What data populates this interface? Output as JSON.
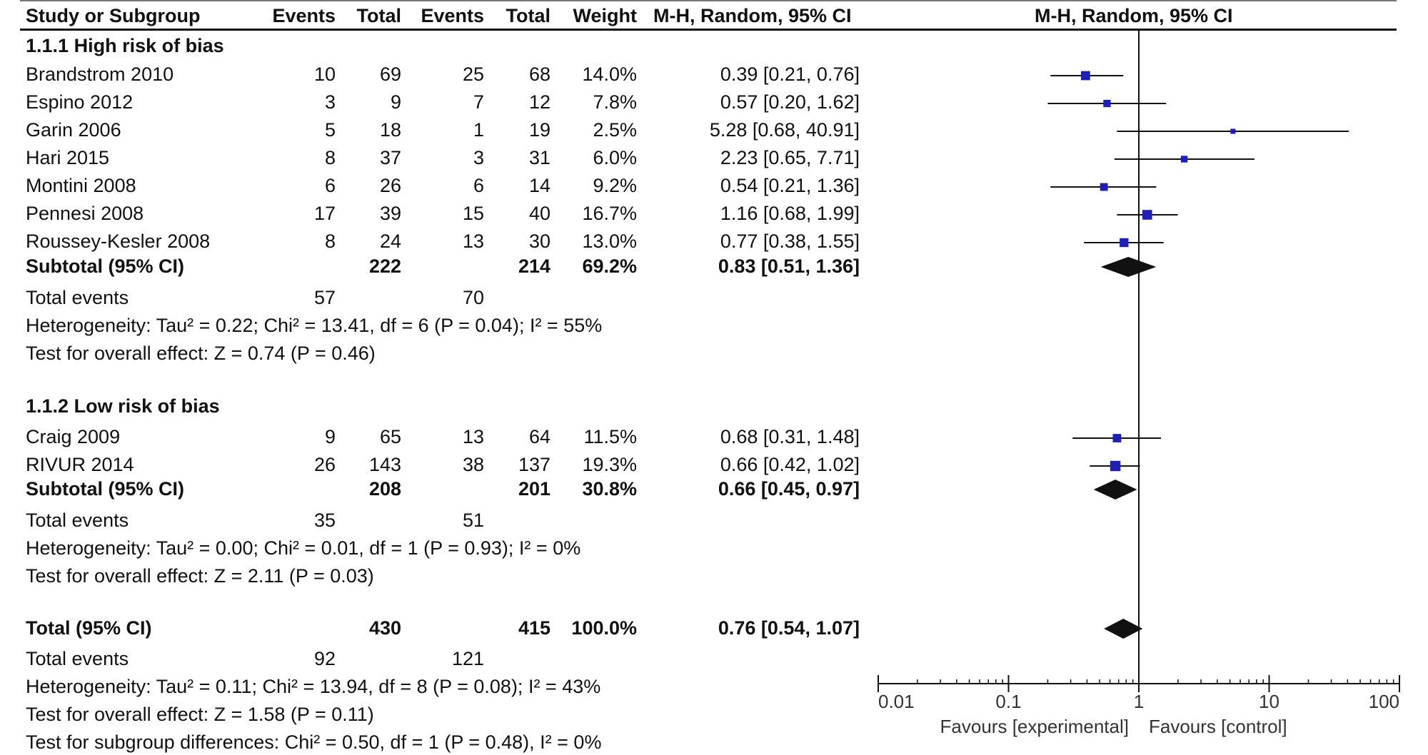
{
  "header": {
    "study": "Study or Subgroup",
    "events1": "Events",
    "total1": "Total",
    "events2": "Events",
    "total2": "Total",
    "weight": "Weight",
    "ci": "M-H, Random, 95% CI",
    "plot_ci": "M-H, Random, 95% CI"
  },
  "groups": [
    {
      "code": "1.1.1",
      "title": "High risk of bias",
      "studies": [
        {
          "name": "Brandstrom 2010",
          "e1": "10",
          "t1": "69",
          "e2": "25",
          "t2": "68",
          "weight": "14.0%",
          "ci": "0.39 [0.21, 0.76]"
        },
        {
          "name": "Espino 2012",
          "e1": "3",
          "t1": "9",
          "e2": "7",
          "t2": "12",
          "weight": "7.8%",
          "ci": "0.57 [0.20, 1.62]"
        },
        {
          "name": "Garin 2006",
          "e1": "5",
          "t1": "18",
          "e2": "1",
          "t2": "19",
          "weight": "2.5%",
          "ci": "5.28 [0.68, 40.91]"
        },
        {
          "name": "Hari 2015",
          "e1": "8",
          "t1": "37",
          "e2": "3",
          "t2": "31",
          "weight": "6.0%",
          "ci": "2.23 [0.65, 7.71]"
        },
        {
          "name": "Montini 2008",
          "e1": "6",
          "t1": "26",
          "e2": "6",
          "t2": "14",
          "weight": "9.2%",
          "ci": "0.54 [0.21, 1.36]"
        },
        {
          "name": "Pennesi 2008",
          "e1": "17",
          "t1": "39",
          "e2": "15",
          "t2": "40",
          "weight": "16.7%",
          "ci": "1.16 [0.68, 1.99]"
        },
        {
          "name": "Roussey-Kesler 2008",
          "e1": "8",
          "t1": "24",
          "e2": "13",
          "t2": "30",
          "weight": "13.0%",
          "ci": "0.77 [0.38, 1.55]"
        }
      ],
      "subtotal": {
        "label": "Subtotal (95% CI)",
        "t1": "222",
        "t2": "214",
        "weight": "69.2%",
        "ci": "0.83 [0.51, 1.36]"
      },
      "total_events": {
        "label": "Total events",
        "e1": "57",
        "e2": "70"
      },
      "heterogeneity": "Heterogeneity: Tau² = 0.22; Chi² = 13.41, df = 6 (P = 0.04); I² = 55%",
      "overall": "Test for overall effect: Z = 0.74 (P = 0.46)"
    },
    {
      "code": "1.1.2",
      "title": "Low risk of bias",
      "studies": [
        {
          "name": "Craig 2009",
          "e1": "9",
          "t1": "65",
          "e2": "13",
          "t2": "64",
          "weight": "11.5%",
          "ci": "0.68 [0.31, 1.48]"
        },
        {
          "name": "RIVUR 2014",
          "e1": "26",
          "t1": "143",
          "e2": "38",
          "t2": "137",
          "weight": "19.3%",
          "ci": "0.66 [0.42, 1.02]"
        }
      ],
      "subtotal": {
        "label": "Subtotal (95% CI)",
        "t1": "208",
        "t2": "201",
        "weight": "30.8%",
        "ci": "0.66 [0.45, 0.97]"
      },
      "total_events": {
        "label": "Total events",
        "e1": "35",
        "e2": "51"
      },
      "heterogeneity": "Heterogeneity: Tau² = 0.00; Chi² = 0.01, df = 1 (P = 0.93); I² = 0%",
      "overall": "Test for overall effect: Z = 2.11 (P = 0.03)"
    }
  ],
  "total": {
    "label": "Total (95% CI)",
    "t1": "430",
    "t2": "415",
    "weight": "100.0%",
    "ci": "0.76 [0.54, 1.07]"
  },
  "total_events": {
    "label": "Total events",
    "e1": "92",
    "e2": "121"
  },
  "heterogeneity": "Heterogeneity: Tau² = 0.11; Chi² = 13.94, df = 8 (P = 0.08); I² = 43%",
  "overall": "Test for overall effect: Z = 1.58 (P = 0.11)",
  "subgroup_diff": "Test for subgroup differences: Chi² = 0.50, df = 1 (P = 0.48), I² = 0%",
  "colors": {
    "marker": "#1f1fb4",
    "line": "#111111"
  },
  "chart_data": {
    "type": "scatter",
    "title": "M-H, Random, 95% CI",
    "scale": "log",
    "xlim": [
      0.01,
      100
    ],
    "x_ticks": [
      "0.01",
      "0.1",
      "1",
      "10",
      "100"
    ],
    "x_tick_values": [
      0.01,
      0.1,
      1,
      10,
      100
    ],
    "favours_left": "Favours [experimental]",
    "favours_right": "Favours [control]",
    "studies": [
      {
        "name": "Brandstrom 2010",
        "est": 0.39,
        "lo": 0.21,
        "hi": 0.76,
        "weight": 14.0
      },
      {
        "name": "Espino 2012",
        "est": 0.57,
        "lo": 0.2,
        "hi": 1.62,
        "weight": 7.8
      },
      {
        "name": "Garin 2006",
        "est": 5.28,
        "lo": 0.68,
        "hi": 40.91,
        "weight": 2.5
      },
      {
        "name": "Hari 2015",
        "est": 2.23,
        "lo": 0.65,
        "hi": 7.71,
        "weight": 6.0
      },
      {
        "name": "Montini 2008",
        "est": 0.54,
        "lo": 0.21,
        "hi": 1.36,
        "weight": 9.2
      },
      {
        "name": "Pennesi 2008",
        "est": 1.16,
        "lo": 0.68,
        "hi": 1.99,
        "weight": 16.7
      },
      {
        "name": "Roussey-Kesler 2008",
        "est": 0.77,
        "lo": 0.38,
        "hi": 1.55,
        "weight": 13.0
      },
      {
        "name": "Craig 2009",
        "est": 0.68,
        "lo": 0.31,
        "hi": 1.48,
        "weight": 11.5
      },
      {
        "name": "RIVUR 2014",
        "est": 0.66,
        "lo": 0.42,
        "hi": 1.02,
        "weight": 19.3
      }
    ],
    "diamonds": [
      {
        "name": "Subtotal 1.1.1",
        "est": 0.83,
        "lo": 0.51,
        "hi": 1.36
      },
      {
        "name": "Subtotal 1.1.2",
        "est": 0.66,
        "lo": 0.45,
        "hi": 0.97
      },
      {
        "name": "Total",
        "est": 0.76,
        "lo": 0.54,
        "hi": 1.07
      }
    ]
  }
}
